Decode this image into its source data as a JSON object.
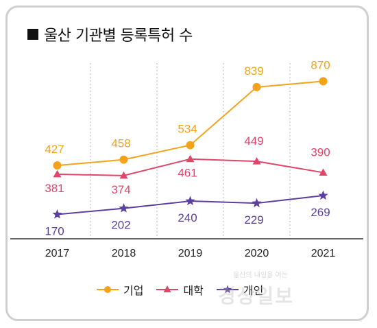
{
  "title": "울산 기관별 등록특허 수",
  "watermark": {
    "logo": "경상일보",
    "tagline": "울산의 내일을 여는"
  },
  "colors": {
    "기업": "#f5a21b",
    "대학": "#e0456a",
    "개인": "#5b3f9e",
    "grid": "#b5b5b5",
    "axis": "#333333"
  },
  "chart_data": {
    "type": "line",
    "title": "울산 기관별 등록특허 수",
    "categories": [
      "2017",
      "2018",
      "2019",
      "2020",
      "2021"
    ],
    "series": [
      {
        "name": "기업",
        "marker": "circle",
        "values": [
          427,
          458,
          534,
          839,
          870
        ]
      },
      {
        "name": "대학",
        "marker": "triangle",
        "values": [
          381,
          374,
          461,
          449,
          390
        ]
      },
      {
        "name": "개인",
        "marker": "star",
        "values": [
          170,
          202,
          240,
          229,
          269
        ]
      }
    ],
    "legend_position": "bottom",
    "grid": "vertical dotted"
  }
}
